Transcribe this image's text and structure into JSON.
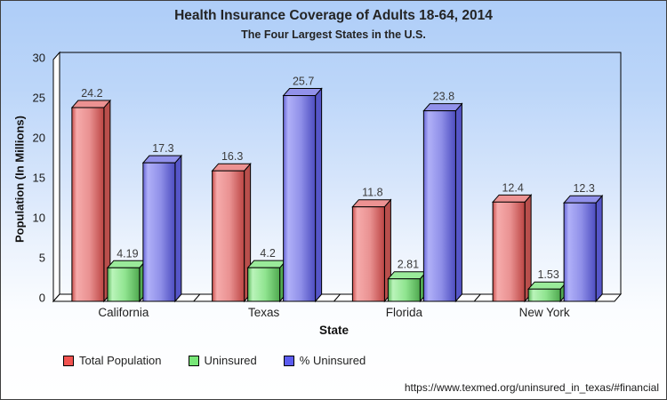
{
  "header": {
    "title": "Health Insurance Coverage of Adults 18-64, 2014",
    "subtitle": "The Four Largest States in the U.S."
  },
  "chart_data": {
    "type": "bar",
    "bar_style": "3d",
    "title": "Health Insurance Coverage of Adults 18-64, 2014",
    "subtitle": "The Four Largest States in the U.S.",
    "categories": [
      "California",
      "Texas",
      "Florida",
      "New York"
    ],
    "series": [
      {
        "name": "Total Population",
        "values": [
          24.2,
          16.3,
          11.8,
          12.4
        ],
        "labels": [
          "24.2",
          "16.3",
          "11.8",
          "12.4"
        ],
        "legend_color": "#f25350",
        "gradient": [
          "#c94f4c",
          "#f6abab",
          "#e99191",
          "#bc4543"
        ],
        "top_color": "#ec9292",
        "side_color": "#b94f4c"
      },
      {
        "name": "Uninsured",
        "values": [
          4.19,
          4.2,
          2.81,
          1.53
        ],
        "labels": [
          "4.19",
          "4.2",
          "2.81",
          "1.53"
        ],
        "legend_color": "#77e677",
        "gradient": [
          "#59b859",
          "#baf4ba",
          "#8fe48f",
          "#4fa84f"
        ],
        "top_color": "#9aea9a",
        "side_color": "#52ab52"
      },
      {
        "name": "% Uninsured",
        "values": [
          17.3,
          25.7,
          23.8,
          12.3
        ],
        "labels": [
          "17.3",
          "25.7",
          "23.8",
          "12.3"
        ],
        "legend_color": "#5c5cf0",
        "gradient": [
          "#6666d8",
          "#b0b0f8",
          "#8f8fe8",
          "#4d4dc0"
        ],
        "top_color": "#9191ea",
        "side_color": "#5656c8"
      }
    ],
    "xlabel": "State",
    "ylabel": "Population (In Millions)",
    "ylim": [
      0,
      30
    ],
    "yticks": [
      0,
      5,
      10,
      15,
      20,
      25,
      30
    ],
    "grid": false,
    "legend_position": "bottom-left",
    "value_label_color": "#3a3a3a",
    "axis_color": "#000000",
    "wall_color": "#ffffff"
  },
  "footer": {
    "source_url": "https://www.texmed.org/uninsured_in_texas/#financial"
  }
}
